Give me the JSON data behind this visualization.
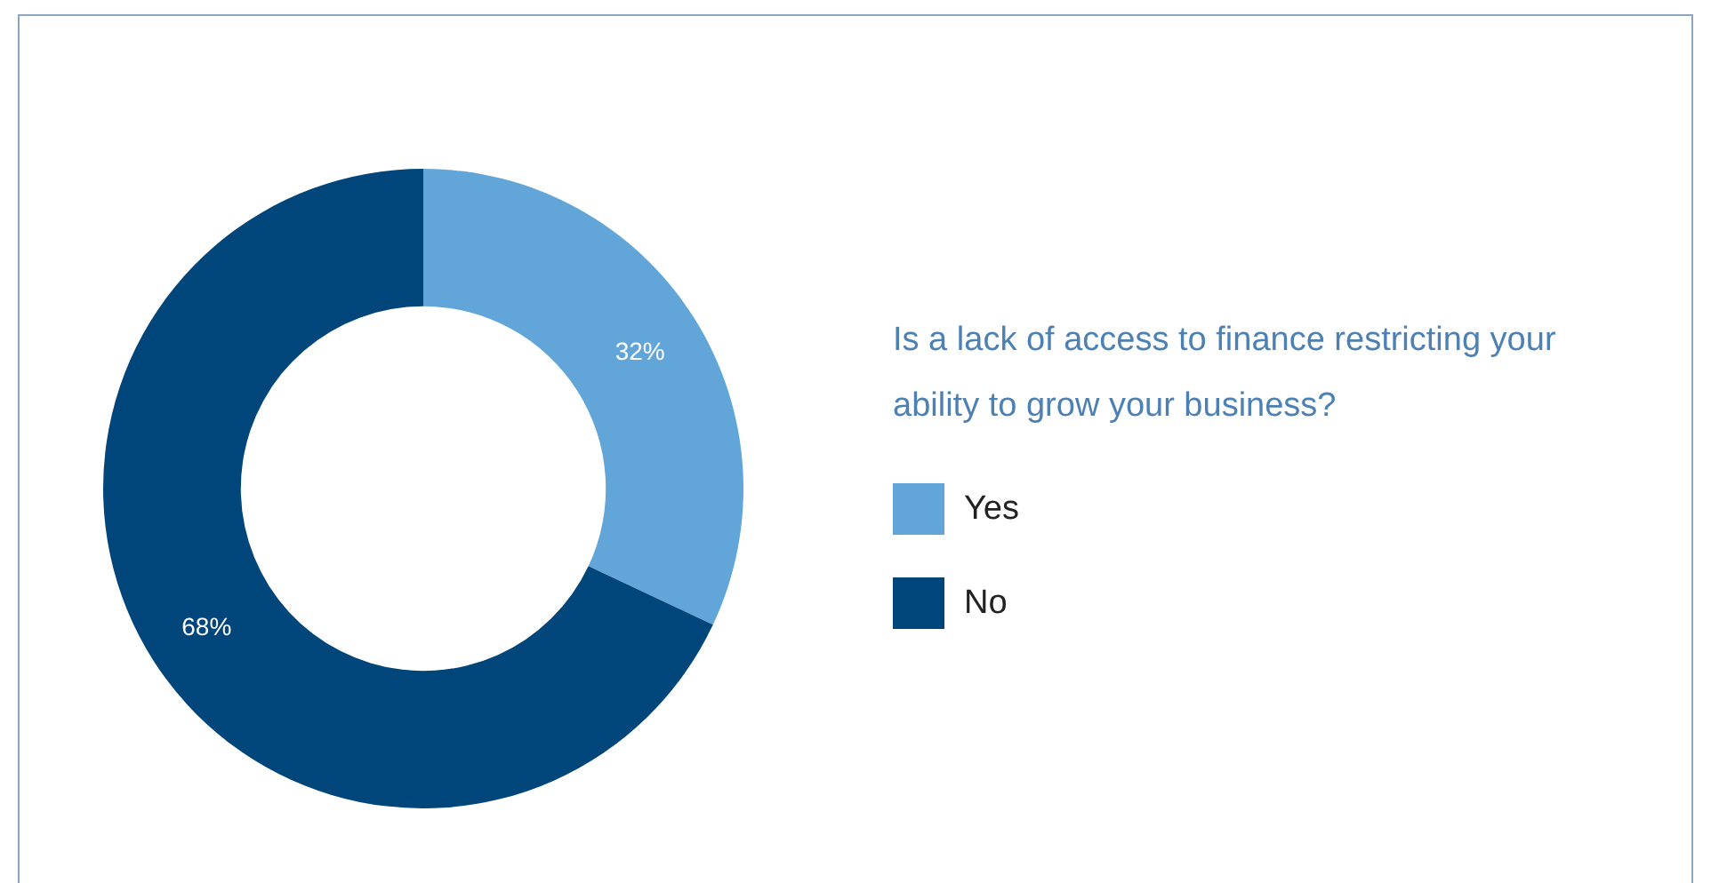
{
  "chart_data": {
    "type": "donut",
    "title": "Is a lack of access to finance restricting your ability to grow your business?",
    "categories": [
      "Yes",
      "No"
    ],
    "values": [
      32,
      68
    ],
    "colors": [
      "#62a6d9",
      "#01467a"
    ],
    "value_labels": [
      "32%",
      "68%"
    ],
    "legend": "right"
  }
}
